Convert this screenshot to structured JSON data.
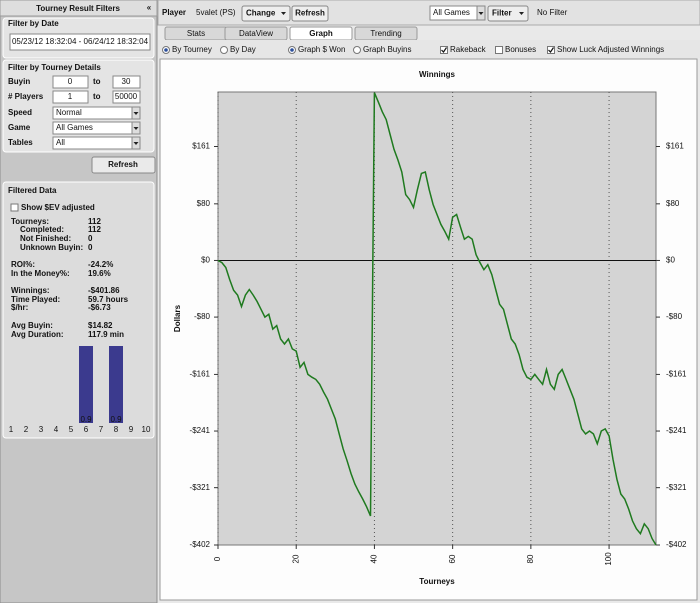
{
  "sidebar": {
    "title": "Tourney Result Filters",
    "collapse": "«",
    "date_filter": {
      "heading": "Filter by Date",
      "range": "05/23/12 18:32:04 - 06/24/12 18:32:04"
    },
    "details_filter": {
      "heading": "Filter by Tourney Details",
      "buyin": {
        "label": "Buyin",
        "from": "0",
        "to_label": "to",
        "to": "30"
      },
      "players": {
        "label": "# Players",
        "from": "1",
        "to_label": "to",
        "to": "50000"
      },
      "speed": {
        "label": "Speed",
        "value": "Normal"
      },
      "game": {
        "label": "Game",
        "value": "All Games"
      },
      "tables": {
        "label": "Tables",
        "value": "All"
      }
    },
    "refresh": "Refresh",
    "filtered": {
      "heading": "Filtered Data",
      "ev_checkbox": "Show $EV adjusted",
      "stats": [
        {
          "label": "Tourneys:",
          "value": "112"
        },
        {
          "label": "Completed:",
          "value": "112"
        },
        {
          "label": "Not Finished:",
          "value": "0"
        },
        {
          "label": "Unknown Buyin:",
          "value": "0"
        },
        {
          "label": "ROI%:",
          "value": "-24.2%"
        },
        {
          "label": "In the Money%:",
          "value": "19.6%"
        },
        {
          "label": "Winnings:",
          "value": "-$401.86"
        },
        {
          "label": "Time Played:",
          "value": "59.7 hours"
        },
        {
          "label": "$/hr:",
          "value": "-$6.73"
        },
        {
          "label": "Avg Buyin:",
          "value": "$14.82"
        },
        {
          "label": "Avg Duration:",
          "value": "117.9 min"
        }
      ]
    }
  },
  "toolbar": {
    "player_label": "Player",
    "player": "5valet (PS)",
    "change": "Change",
    "refresh": "Refresh",
    "games": "All Games",
    "filter": "Filter",
    "filter_status": "No Filter"
  },
  "tabs": [
    {
      "label": "Stats",
      "active": false
    },
    {
      "label": "DataView",
      "active": false
    },
    {
      "label": "Graph",
      "active": true
    },
    {
      "label": "Trending",
      "active": false
    }
  ],
  "options": [
    {
      "label": "By Tourney",
      "kind": "radio",
      "checked": true
    },
    {
      "label": "By Day",
      "kind": "radio",
      "checked": false
    },
    {
      "label": "Graph $ Won",
      "kind": "radio",
      "checked": true
    },
    {
      "label": "Graph Buyins",
      "kind": "radio",
      "checked": false
    },
    {
      "label": "Rakeback",
      "kind": "checkbox",
      "checked": true
    },
    {
      "label": "Bonuses",
      "kind": "checkbox",
      "checked": false
    },
    {
      "label": "Show Luck Adjusted Winnings",
      "kind": "checkbox",
      "checked": true
    }
  ],
  "chart_data": [
    {
      "type": "line",
      "title": "Winnings",
      "x_label": "Tourneys",
      "y_label": "Dollars",
      "color": "#1f7a1f",
      "x": [
        0,
        1,
        2,
        3,
        4,
        5,
        6,
        7,
        8,
        9,
        10,
        11,
        12,
        13,
        14,
        15,
        16,
        17,
        18,
        19,
        20,
        21,
        22,
        23,
        24,
        25,
        26,
        27,
        28,
        29,
        30,
        31,
        32,
        33,
        34,
        35,
        36,
        37,
        38,
        39,
        40,
        41,
        42,
        43,
        44,
        45,
        46,
        47,
        48,
        49,
        50,
        51,
        52,
        53,
        54,
        55,
        56,
        57,
        58,
        59,
        60,
        61,
        62,
        63,
        64,
        65,
        66,
        67,
        68,
        69,
        70,
        71,
        72,
        73,
        74,
        75,
        76,
        77,
        78,
        79,
        80,
        81,
        82,
        83,
        84,
        85,
        86,
        87,
        88,
        89,
        90,
        91,
        92,
        93,
        94,
        95,
        96,
        97,
        98,
        99,
        100,
        101,
        102,
        103,
        104,
        105,
        106,
        107,
        108,
        109,
        110,
        111,
        112
      ],
      "values": [
        0,
        -3,
        -10,
        -27,
        -42,
        -49,
        -65,
        -49,
        -41,
        -49,
        -58,
        -69,
        -80,
        -76,
        -97,
        -92,
        -111,
        -118,
        -111,
        -125,
        -128,
        -151,
        -144,
        -161,
        -165,
        -168,
        -175,
        -186,
        -196,
        -210,
        -224,
        -245,
        -266,
        -283,
        -301,
        -316,
        -327,
        -337,
        -348,
        -361,
        237,
        224,
        210,
        199,
        178,
        157,
        142,
        125,
        93,
        86,
        75,
        100,
        123,
        125,
        100,
        79,
        65,
        51,
        41,
        30,
        61,
        65,
        47,
        30,
        34,
        30,
        8,
        -3,
        -13,
        -6,
        -20,
        -41,
        -62,
        -69,
        -90,
        -111,
        -118,
        -133,
        -154,
        -165,
        -168,
        -161,
        -168,
        -175,
        -154,
        -175,
        -182,
        -161,
        -154,
        -168,
        -182,
        -196,
        -217,
        -238,
        -245,
        -241,
        -245,
        -259,
        -241,
        -238,
        -248,
        -281,
        -309,
        -330,
        -337,
        -351,
        -368,
        -379,
        -386,
        -372,
        -379,
        -393,
        -402
      ],
      "xlim": [
        0,
        112
      ],
      "xticks": [
        0,
        20,
        40,
        60,
        80,
        100
      ],
      "ylim": [
        -402,
        238
      ],
      "yticks": [
        {
          "value": -402,
          "label": "-$402"
        },
        {
          "value": -321,
          "label": "-$321"
        },
        {
          "value": -241,
          "label": "-$241"
        },
        {
          "value": -161,
          "label": "-$161"
        },
        {
          "value": -80,
          "label": "-$80"
        },
        {
          "value": 0,
          "label": "$0"
        },
        {
          "value": 80,
          "label": "$80"
        },
        {
          "value": 161,
          "label": "$161"
        }
      ],
      "grid": "x",
      "zero_line": true,
      "mirror_y_axis": true
    },
    {
      "type": "bar",
      "categories": [
        "1",
        "2",
        "3",
        "4",
        "5",
        "6",
        "7",
        "8",
        "9",
        "10"
      ],
      "values": [
        0,
        0,
        0,
        0,
        0,
        0.9,
        0,
        0.9,
        0,
        0
      ],
      "value_labels": [
        null,
        null,
        null,
        null,
        null,
        "0.9",
        null,
        "0.9",
        null,
        null
      ],
      "color": "#3b3a8e",
      "ylim": [
        0,
        0.9
      ]
    }
  ]
}
